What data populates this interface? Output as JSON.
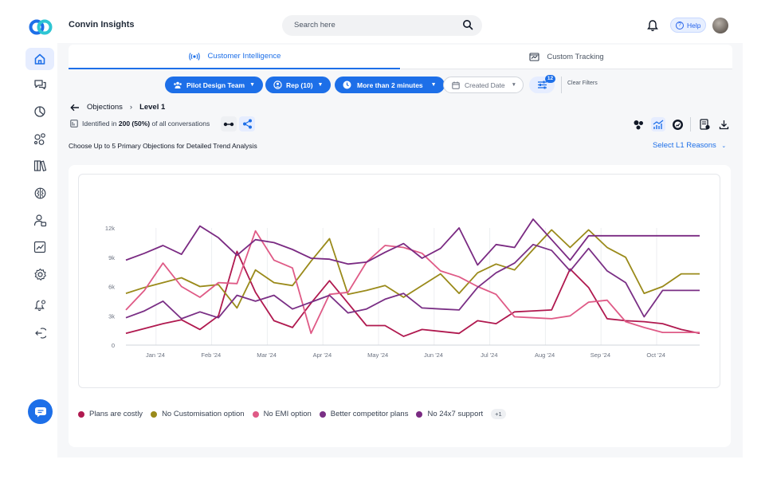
{
  "app": {
    "title": "Convin Insights"
  },
  "search": {
    "placeholder": "Search here"
  },
  "header": {
    "help_label": "Help"
  },
  "sidebar": {
    "items": [
      {
        "icon": "home-icon",
        "active": true
      },
      {
        "icon": "chat-bubbles-icon"
      },
      {
        "icon": "pie-chart-icon"
      },
      {
        "icon": "nodes-icon"
      },
      {
        "icon": "library-icon"
      },
      {
        "icon": "brain-icon"
      },
      {
        "icon": "user-settings-icon"
      },
      {
        "icon": "trend-chart-icon"
      },
      {
        "icon": "gear-icon"
      },
      {
        "icon": "bell-settings-icon"
      },
      {
        "icon": "logout-icon"
      }
    ]
  },
  "tabs": [
    {
      "label": "Customer Intelligence",
      "active": true
    },
    {
      "label": "Custom Tracking",
      "active": false
    }
  ],
  "filters": {
    "team": "Pilot Design Team",
    "rep": "Rep (10)",
    "duration": "More than 2 minutes",
    "date": "Created Date",
    "count_badge": "12",
    "clear_label": "Clear Filters"
  },
  "breadcrumb": {
    "parent": "Objections",
    "current": "Level 1"
  },
  "identified": {
    "prefix": "Identified in",
    "count": "200 (50%)",
    "suffix": "of all conversations"
  },
  "choose_text": "Choose Up to 5 Primary Objections for Detailed Trend Analysis",
  "select_reasons_label": "Select L1 Reasons",
  "colors": {
    "accent": "#1d6fe8"
  },
  "chart_data": {
    "type": "line",
    "y_ticks": [
      "0",
      "3k",
      "6k",
      "9k",
      "12k"
    ],
    "ylim": [
      0,
      12000
    ],
    "x_labels": [
      "Jan '24",
      "Feb '24",
      "Mar '24",
      "Apr '24",
      "May '24",
      "Jun '24",
      "Jul '24",
      "Aug '24",
      "Sep '24",
      "Oct '24"
    ],
    "x": [
      0,
      1,
      2,
      3,
      4,
      5,
      6,
      7,
      8,
      9,
      10,
      11,
      12,
      13,
      14,
      15,
      16,
      17,
      18,
      19,
      20,
      21,
      22,
      23,
      24,
      25,
      26,
      27,
      28,
      29,
      30,
      31,
      32,
      33,
      34,
      35,
      36,
      37,
      38,
      39
    ],
    "series": [
      {
        "name": "Plans are costly",
        "color": "#b0194f",
        "values": [
          1200,
          1700,
          2200,
          2600,
          1600,
          3000,
          9600,
          5400,
          2500,
          1800,
          4300,
          6600,
          4300,
          2000,
          2000,
          900,
          1600,
          1400,
          1200,
          2500,
          2200,
          3400,
          3500,
          3600,
          7800,
          5900,
          2700,
          2500,
          2400,
          2200,
          1600,
          1200,
          1400,
          1800,
          2200,
          2200,
          2200,
          2200,
          2200,
          2200
        ]
      },
      {
        "name": "No Customisation option",
        "color": "#9a8a1a",
        "values": [
          5300,
          5900,
          6400,
          6900,
          6000,
          6200,
          3800,
          7700,
          6400,
          6100,
          8600,
          10900,
          5200,
          5600,
          6100,
          4900,
          6100,
          7300,
          5300,
          7400,
          8300,
          7700,
          9800,
          11800,
          10000,
          11800,
          10000,
          9000,
          5300,
          6000,
          7300,
          7300,
          7300,
          7300,
          7300,
          7300,
          7300,
          7300,
          7300,
          7300
        ]
      },
      {
        "name": "No EMI option",
        "color": "#df5a86",
        "values": [
          3600,
          5600,
          8400,
          6000,
          4900,
          6400,
          6300,
          11700,
          8700,
          7900,
          1200,
          5200,
          5400,
          8500,
          10200,
          10000,
          9400,
          7600,
          7000,
          6000,
          5200,
          2900,
          2800,
          2700,
          3000,
          4400,
          4600,
          2400,
          1800,
          1300,
          1300,
          1300,
          1300,
          1300,
          1300,
          1300,
          1300,
          1300,
          1300,
          1300
        ]
      },
      {
        "name": "Better competitor plans",
        "color": "#7a2f85",
        "values": [
          2800,
          3500,
          4500,
          2700,
          3400,
          2800,
          5100,
          4500,
          5100,
          3700,
          4400,
          5100,
          3300,
          3700,
          4700,
          5300,
          3800,
          3700,
          3600,
          5900,
          7400,
          8400,
          10300,
          9700,
          7600,
          9900,
          7600,
          6400,
          2900,
          5600,
          5600,
          5600,
          5600,
          5600,
          5600,
          5600,
          5600,
          5600,
          5600,
          5600
        ]
      },
      {
        "name": "No 24x7 support",
        "color": "#7a2a82",
        "values": [
          8700,
          9400,
          10200,
          9300,
          12200,
          11000,
          9200,
          10800,
          10500,
          9800,
          8900,
          8800,
          8300,
          8500,
          9500,
          10400,
          8900,
          9900,
          12000,
          8200,
          10300,
          10000,
          12900,
          10800,
          8700,
          11200,
          11200,
          11200,
          11200,
          11200,
          11200,
          11200,
          11200,
          11200,
          11200,
          11200,
          11200,
          11200,
          11200,
          11200
        ]
      }
    ],
    "legend_more": "+1",
    "grid": true,
    "legend": "bottom"
  }
}
